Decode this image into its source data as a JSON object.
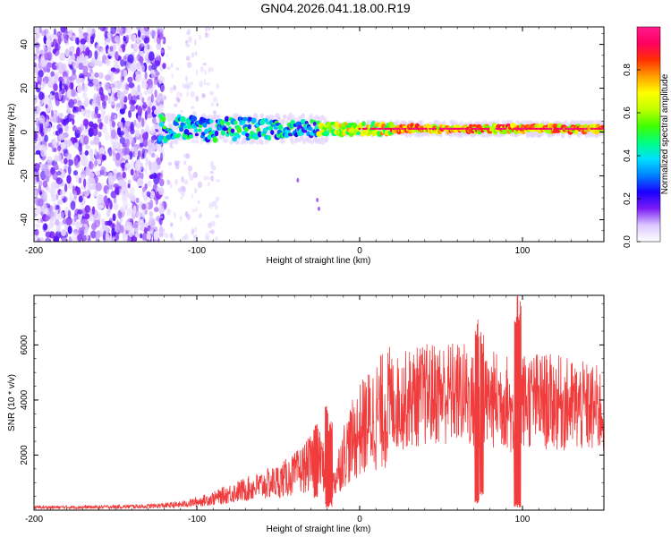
{
  "title": "GN04.2026.041.18.00.R19",
  "chart_data": [
    {
      "type": "heatmap",
      "xlabel": "Height of straight line (km)",
      "ylabel": "Frequency (Hz)",
      "xlim": [
        -200,
        150
      ],
      "ylim": [
        -50,
        48
      ],
      "xticks": [
        -200,
        -100,
        0,
        100
      ],
      "yticks": [
        -40,
        -20,
        0,
        20,
        40
      ],
      "grid": false,
      "description_note_values": {
        "noise_region_x": [
          -200,
          -120
        ],
        "band_center_hz": 1.5,
        "band_start_x": -123,
        "outliers": [
          [
            -38,
            -22
          ],
          [
            -26,
            -31
          ],
          [
            -25,
            -35
          ]
        ]
      },
      "colorbar": {
        "label": "Normalized spectral amplitude",
        "range": [
          0,
          1
        ],
        "ticks": [
          0.0,
          0.2,
          0.4,
          0.6,
          0.8
        ],
        "colormap": [
          "#ffffff",
          "#dcc8ff",
          "#7a1cf5",
          "#1a00ff",
          "#0080ff",
          "#00e0ff",
          "#00ff80",
          "#40ff00",
          "#c0ff00",
          "#ffff00",
          "#ffa000",
          "#ff3000",
          "#ff0060",
          "#ff1a8c"
        ]
      }
    },
    {
      "type": "line",
      "xlabel": "Height of straight line (km)",
      "ylabel": "SNR (10 * v/v)",
      "xlim": [
        -200,
        150
      ],
      "ylim": [
        0,
        7800
      ],
      "xticks": [
        -200,
        -100,
        0,
        100
      ],
      "yticks": [
        2000,
        4000,
        6000
      ],
      "grid": false,
      "series_color": "#f03c3c",
      "envelope": {
        "x": [
          -200,
          -160,
          -130,
          -110,
          -100,
          -90,
          -80,
          -70,
          -60,
          -50,
          -40,
          -30,
          -25,
          -20,
          -17,
          -10,
          0,
          10,
          20,
          30,
          40,
          50,
          60,
          65,
          70,
          75,
          80,
          85,
          90,
          95,
          100,
          110,
          120,
          130,
          140,
          150
        ],
        "y": [
          100,
          110,
          140,
          200,
          300,
          420,
          600,
          750,
          900,
          1050,
          1300,
          1700,
          1900,
          1300,
          800,
          2000,
          2900,
          3450,
          3800,
          4050,
          4180,
          4250,
          4250,
          4200,
          3900,
          3800,
          4000,
          4000,
          4000,
          3300,
          4000,
          3980,
          3900,
          3800,
          3700,
          3600
        ]
      },
      "spikes": [
        {
          "x": -27,
          "peak": 3200,
          "low": 400
        },
        {
          "x": -20,
          "peak": 4000,
          "low": 50
        },
        {
          "x": -18,
          "peak": 3300,
          "low": 80
        },
        {
          "x": 72,
          "peak": 7100,
          "low": 200
        },
        {
          "x": 75,
          "peak": 6500,
          "low": 500
        },
        {
          "x": 96,
          "peak": 7800,
          "low": 20
        },
        {
          "x": 98,
          "peak": 7800,
          "low": 20
        }
      ]
    }
  ]
}
